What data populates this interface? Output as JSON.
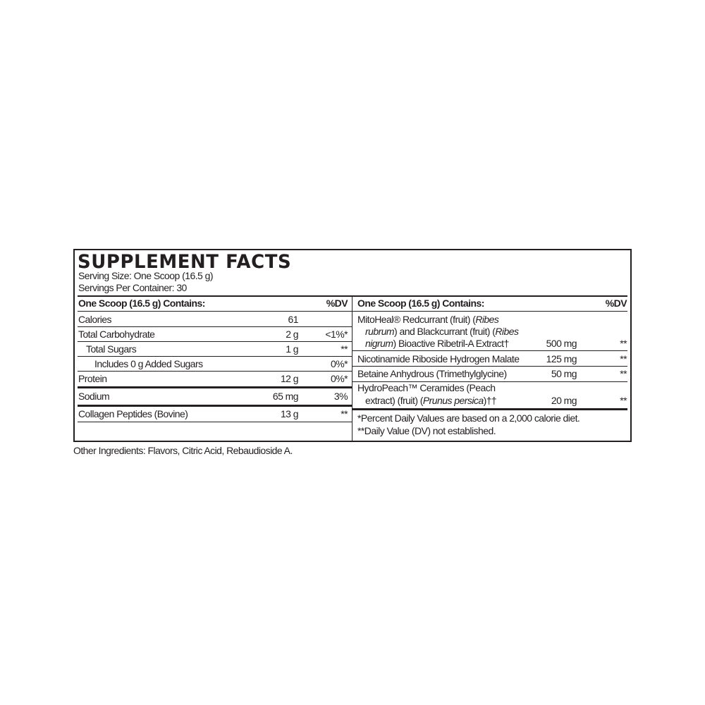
{
  "title": "SUPPLEMENT FACTS",
  "serving_size": "Serving Size: One Scoop (16.5 g)",
  "servings_per_container": "Servings Per Container: 30",
  "left": {
    "header": "One Scoop (16.5 g) Contains:",
    "dv_header": "%DV",
    "rows": [
      {
        "name": "Calories",
        "amount": "61",
        "dv": ""
      },
      {
        "name": "Total Carbohydrate",
        "amount": "2 g",
        "dv": "<1%*"
      },
      {
        "name": "Total Sugars",
        "amount": "1 g",
        "dv": "**"
      },
      {
        "name": "Includes 0 g Added Sugars",
        "amount": "",
        "dv": "0%*"
      },
      {
        "name": "Protein",
        "amount": "12 g",
        "dv": "0%*"
      },
      {
        "name": "Sodium",
        "amount": "65 mg",
        "dv": "3%"
      },
      {
        "name": "Collagen Peptides (Bovine)",
        "amount": "13 g",
        "dv": "**"
      }
    ]
  },
  "right": {
    "header": "One Scoop (16.5 g) Contains:",
    "dv_header": "%DV",
    "rows": [
      {
        "line1a": "MitoHeal® Redcurrant (fruit) (",
        "line1i": "Ribes",
        "line2i": "rubrum",
        "line2a": ") and Blackcurrant (fruit) (",
        "line2i2": "Ribes",
        "line3i": "nigrum",
        "line3a": ") Bioactive Ribetril-A Extract†",
        "amount": "500 mg",
        "dv": "**"
      },
      {
        "name": "Nicotinamide Riboside Hydrogen Malate",
        "amount": "125 mg",
        "dv": "**"
      },
      {
        "name": "Betaine Anhydrous (Trimethylglycine)",
        "amount": "50 mg",
        "dv": "**"
      },
      {
        "line1": "HydroPeach™ Ceramides (Peach",
        "line2a": "extract) (fruit) (",
        "line2i": "Prunus persica",
        "line2b": ")††",
        "amount": "20 mg",
        "dv": "**"
      }
    ],
    "footnote1": "*Percent Daily Values are based on a 2,000 calorie diet.",
    "footnote2": "**Daily Value (DV) not established."
  },
  "other_ingredients": "Other Ingredients: Flavors, Citric Acid, Rebaudioside A."
}
